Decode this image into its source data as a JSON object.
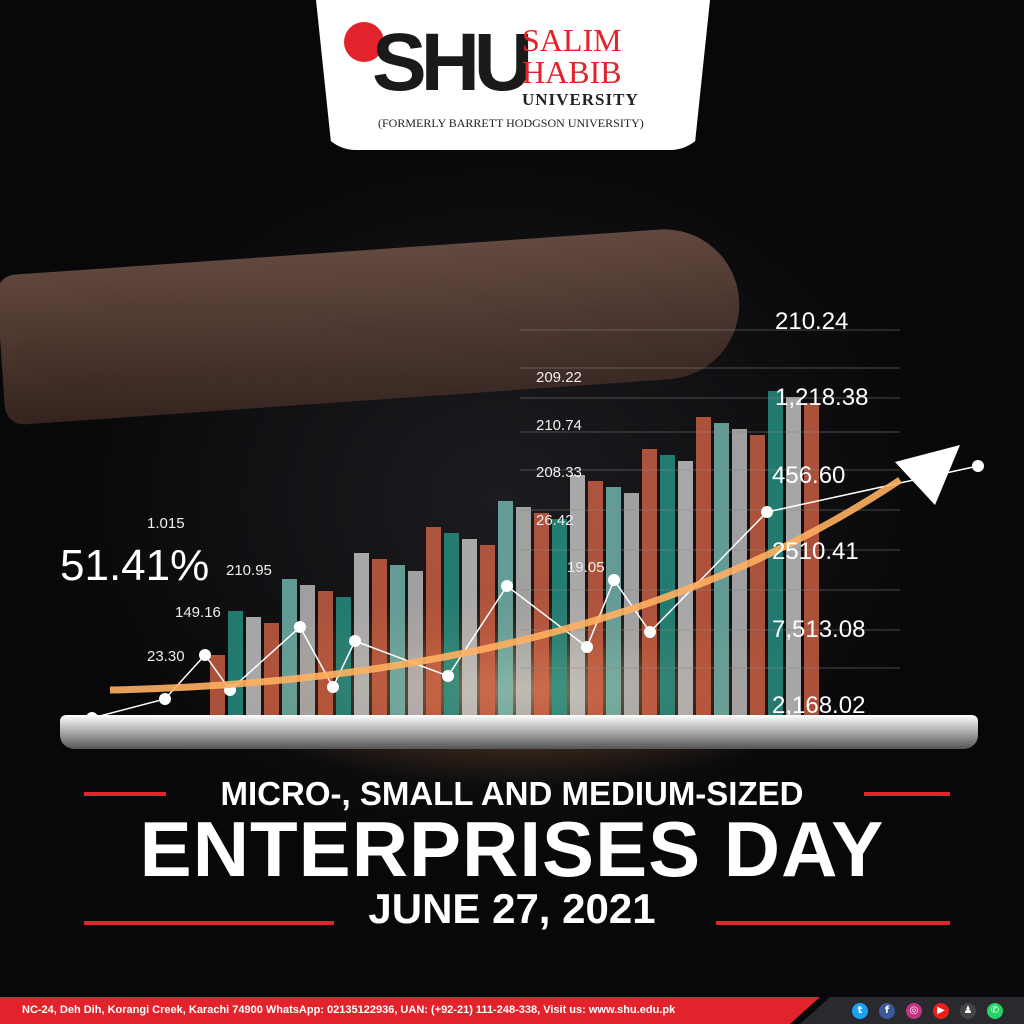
{
  "logo": {
    "mark": "SHU",
    "name_line1": "SALIM",
    "name_line2": "HABIB",
    "name_line3": "UNIVERSITY",
    "former": "(FORMERLY BARRETT HODGSON UNIVERSITY)"
  },
  "figures": {
    "right": [
      "210.24",
      "1,218.38",
      "456.60",
      "2510.41",
      "7,513.08",
      "2,168.02"
    ],
    "middle": [
      "209.22",
      "210.74",
      "208.33",
      "26.42",
      "19.05"
    ],
    "left": [
      "1.015",
      "210.95",
      "149.16",
      "23.30"
    ],
    "percent": "51.41%"
  },
  "headline": {
    "line1": "MICRO-, SMALL AND MEDIUM-SIZED",
    "line2": "ENTERPRISES DAY",
    "date": "JUNE 27, 2021"
  },
  "footer": {
    "text": "NC-24, Deh Dih, Korangi Creek, Karachi 74900  WhatsApp: 02135122936, UAN: (+92-21) 111-248-338, Visit us: www.shu.edu.pk",
    "social": [
      {
        "icon": "twitter-icon",
        "glyph": "t",
        "color": "#1da1f2"
      },
      {
        "icon": "facebook-icon",
        "glyph": "f",
        "color": "#3b5998"
      },
      {
        "icon": "instagram-icon",
        "glyph": "◎",
        "color": "#c13584"
      },
      {
        "icon": "youtube-icon",
        "glyph": "▶",
        "color": "#e62117"
      },
      {
        "icon": "snapchat-icon",
        "glyph": "♟",
        "color": "#444"
      },
      {
        "icon": "whatsapp-icon",
        "glyph": "✆",
        "color": "#25d366"
      }
    ]
  },
  "colors": {
    "brand_red": "#e3232b"
  }
}
